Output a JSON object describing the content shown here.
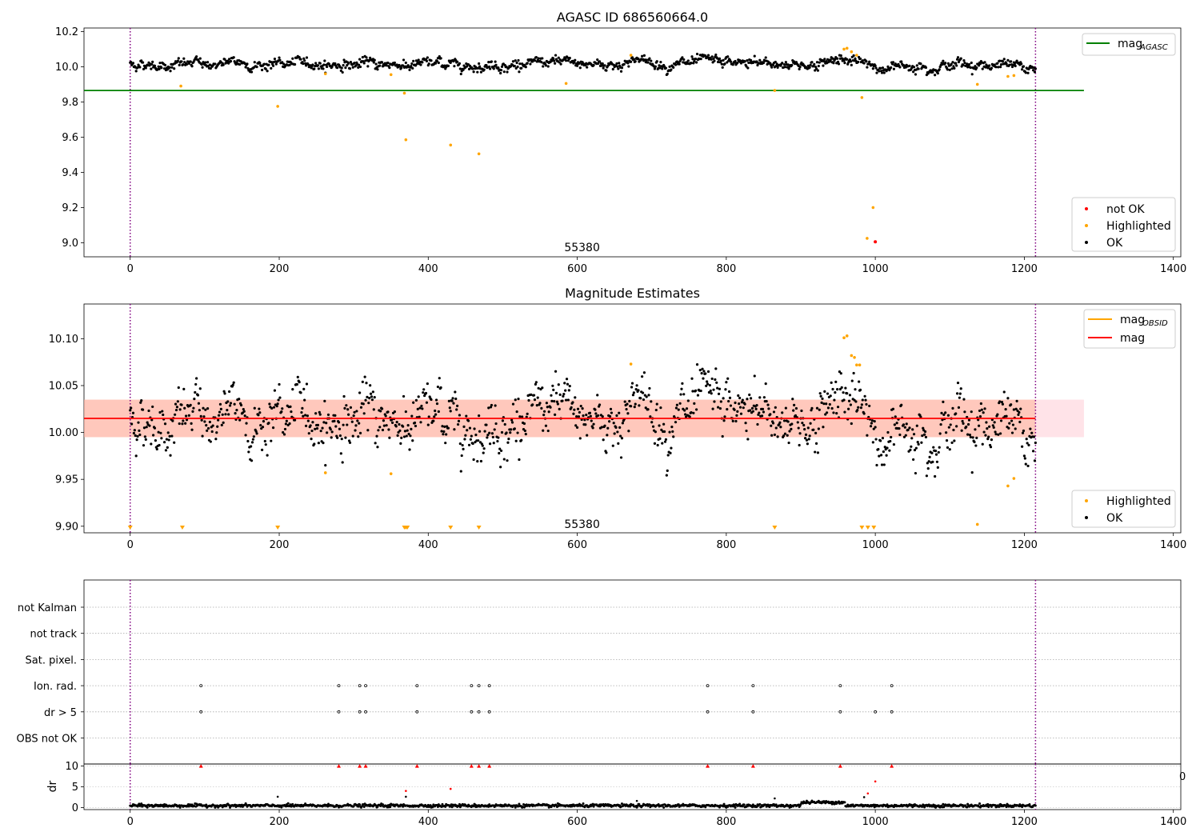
{
  "chart_data": [
    {
      "type": "scatter",
      "title": "AGASC ID 686560664.0",
      "xlim": [
        -62,
        1410
      ],
      "ylim": [
        8.92,
        10.22
      ],
      "xticks": [
        "0",
        "200",
        "400",
        "600",
        "800",
        "1000",
        "1200",
        "1400"
      ],
      "xtick_values": [
        0,
        200,
        400,
        600,
        800,
        1000,
        1200,
        1400
      ],
      "yticks": [
        "9.0",
        "9.2",
        "9.4",
        "9.6",
        "9.8",
        "10.0",
        "10.2"
      ],
      "ytick_values": [
        9.0,
        9.2,
        9.4,
        9.6,
        9.8,
        10.0,
        10.2
      ],
      "vlines": [
        0,
        1215
      ],
      "annotation": {
        "text": "55380",
        "x": 585,
        "y": 8.97
      },
      "mag_agasc": {
        "value": 9.865,
        "x_range": [
          -62,
          1280
        ],
        "color": "#008000"
      },
      "baseline": {
        "x_range": [
          0,
          1215
        ],
        "level": 10.015,
        "spread": 0.02,
        "events": [
          [
            660,
            700,
            0.045
          ],
          [
            930,
            975,
            0.05
          ],
          [
            985,
            1045,
            -0.035
          ]
        ]
      },
      "highlighted": [
        [
          68,
          9.89
        ],
        [
          198,
          9.775
        ],
        [
          262,
          9.96
        ],
        [
          350,
          9.955
        ],
        [
          368,
          9.85
        ],
        [
          370,
          9.585
        ],
        [
          430,
          9.555
        ],
        [
          468,
          9.505
        ],
        [
          585,
          9.905
        ],
        [
          672,
          10.065
        ],
        [
          865,
          9.865
        ],
        [
          958,
          10.1
        ],
        [
          962,
          10.105
        ],
        [
          968,
          10.085
        ],
        [
          975,
          10.065
        ],
        [
          982,
          9.825
        ],
        [
          989,
          9.025
        ],
        [
          997,
          9.2
        ],
        [
          1137,
          9.9
        ],
        [
          1178,
          9.945
        ],
        [
          1186,
          9.95
        ]
      ],
      "not_ok": [
        [
          1000,
          9.005
        ]
      ],
      "legend_line": [
        {
          "name": "mag",
          "sub": "AGASC",
          "color": "#008000"
        }
      ],
      "legend_points": [
        {
          "name": "not OK",
          "color": "#ff0000"
        },
        {
          "name": "Highlighted",
          "color": "#ffa500"
        },
        {
          "name": "OK",
          "color": "#000000"
        }
      ]
    },
    {
      "type": "scatter",
      "title": "Magnitude Estimates",
      "xlim": [
        -62,
        1410
      ],
      "ylim": [
        9.893,
        10.137
      ],
      "xticks": [
        "0",
        "200",
        "400",
        "600",
        "800",
        "1000",
        "1200",
        "1400"
      ],
      "xtick_values": [
        0,
        200,
        400,
        600,
        800,
        1000,
        1200,
        1400
      ],
      "yticks": [
        "9.90",
        "9.95",
        "10.00",
        "10.05",
        "10.10"
      ],
      "ytick_values": [
        9.9,
        9.95,
        10.0,
        10.05,
        10.1
      ],
      "vlines": [
        0,
        1215
      ],
      "annotation": {
        "text": "55380",
        "x": 585,
        "y": 9.9
      },
      "mag": {
        "value": 10.015,
        "x_range": [
          -62,
          1215
        ],
        "color": "#ff0000"
      },
      "mag_obsid": {
        "value": 10.015,
        "x_range": [
          -62,
          1215
        ],
        "color": "#ffa500"
      },
      "band_outer": {
        "y": [
          9.995,
          10.035
        ],
        "x_range": [
          -62,
          1280
        ],
        "color": "#ffc0cb"
      },
      "band_inner": {
        "y": [
          9.995,
          10.035
        ],
        "x_range": [
          -62,
          1215
        ],
        "color": "#ffa07a"
      },
      "highlighted": [
        [
          262,
          9.957
        ],
        [
          350,
          9.956
        ],
        [
          672,
          10.073
        ],
        [
          958,
          10.101
        ],
        [
          962,
          10.103
        ],
        [
          968,
          10.082
        ],
        [
          972,
          10.08
        ],
        [
          975,
          10.072
        ],
        [
          979,
          10.072
        ],
        [
          1137,
          9.902
        ],
        [
          1178,
          9.943
        ],
        [
          1186,
          9.951
        ]
      ],
      "offscale_markers": [
        0,
        70,
        198,
        368,
        370,
        372,
        430,
        468,
        865,
        982,
        990,
        998
      ],
      "legend_line": [
        {
          "name": "mag",
          "sub": "OBSID",
          "color": "#ffa500"
        },
        {
          "name": "mag",
          "sub": "",
          "color": "#ff0000"
        }
      ],
      "legend_points": [
        {
          "name": "Highlighted",
          "color": "#ffa500"
        },
        {
          "name": "OK",
          "color": "#000000"
        }
      ]
    },
    {
      "type": "scatter",
      "title": "",
      "xlim": [
        -62,
        1410
      ],
      "flag_rows": [
        "not Kalman",
        "not track",
        "Sat. pixel.",
        "Ion. rad.",
        "dr > 5",
        "OBS not OK"
      ],
      "ion_rad_x": [
        95,
        280,
        308,
        316,
        385,
        458,
        468,
        482,
        775,
        836,
        953,
        1022
      ],
      "dr5_x": [
        95,
        280,
        308,
        316,
        385,
        458,
        468,
        482,
        775,
        836,
        953,
        1000,
        1022
      ],
      "vlines": [
        0,
        1215
      ]
    },
    {
      "type": "scatter",
      "title": "",
      "ylabel": "dr",
      "xlim": [
        -62,
        1410
      ],
      "ylim": [
        -0.5,
        10.5
      ],
      "xticks": [
        "0",
        "200",
        "400",
        "600",
        "800",
        "1000",
        "1200",
        "1400"
      ],
      "xtick_values": [
        0,
        200,
        400,
        600,
        800,
        1000,
        1200,
        1400
      ],
      "yticks": [
        "0",
        "5",
        "10"
      ],
      "ytick_values": [
        0,
        5,
        10
      ],
      "vlines": [
        0,
        1215
      ],
      "capped_markers": [
        95,
        280,
        308,
        316,
        385,
        458,
        468,
        482,
        775,
        836,
        953,
        1022
      ],
      "red_points": [
        [
          370,
          4.0
        ],
        [
          430,
          4.5
        ],
        [
          990,
          3.4
        ],
        [
          1000,
          6.3
        ]
      ],
      "outliers": [
        [
          198,
          2.6
        ],
        [
          370,
          2.6
        ],
        [
          680,
          1.6
        ],
        [
          865,
          2.2
        ],
        [
          985,
          2.5
        ]
      ],
      "edge_label": "0"
    }
  ]
}
